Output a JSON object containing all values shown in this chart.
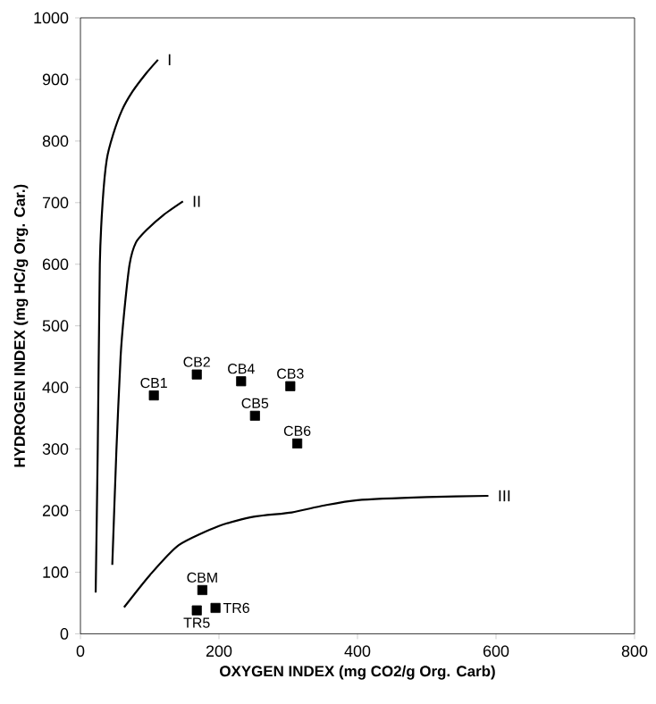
{
  "chart_data": {
    "type": "line",
    "xlabel": "OXYGEN INDEX (mg CO2/g Org. Carb)",
    "ylabel": "HYDROGEN INDEX (mg HC/g Org. Car.)",
    "xlim": [
      0,
      800
    ],
    "ylim": [
      0,
      1000
    ],
    "xticks": [
      0,
      200,
      400,
      600,
      800
    ],
    "yticks": [
      0,
      100,
      200,
      300,
      400,
      500,
      600,
      700,
      800,
      900,
      1000
    ],
    "line_style": "solid",
    "series": [
      {
        "name": "I",
        "color": "#000000",
        "x": [
          22,
          25,
          28,
          32,
          38,
          47,
          60,
          75,
          95,
          112
        ],
        "values": [
          67,
          300,
          600,
          700,
          770,
          810,
          850,
          880,
          910,
          932
        ]
      },
      {
        "name": "II",
        "color": "#000000",
        "x": [
          46,
          52,
          58,
          63,
          71,
          80,
          95,
          120,
          148
        ],
        "values": [
          112,
          300,
          450,
          520,
          600,
          635,
          655,
          680,
          702
        ]
      },
      {
        "name": "III",
        "color": "#000000",
        "x": [
          63,
          100,
          142,
          200,
          250,
          305,
          350,
          400,
          500,
          589
        ],
        "values": [
          43,
          95,
          144,
          175,
          190,
          197,
          208,
          217,
          222,
          224
        ]
      },
      {
        "type": "scatter",
        "marker": "square",
        "color": "#000000",
        "x": [
          106,
          168,
          232,
          303,
          252,
          313,
          176,
          168,
          195
        ],
        "values": [
          387,
          421,
          410,
          402,
          354,
          309,
          71,
          38,
          42
        ]
      }
    ],
    "annotations": [
      {
        "text": "CB1",
        "x": 106,
        "y": 387
      },
      {
        "text": "CB2",
        "x": 168,
        "y": 421
      },
      {
        "text": "CB4",
        "x": 232,
        "y": 410
      },
      {
        "text": "CB3",
        "x": 303,
        "y": 402
      },
      {
        "text": "CB5",
        "x": 252,
        "y": 354
      },
      {
        "text": "CB6",
        "x": 313,
        "y": 309
      },
      {
        "text": "CBM",
        "x": 176,
        "y": 71
      },
      {
        "text": "TR5",
        "x": 168,
        "y": 38
      },
      {
        "text": "TR6",
        "x": 195,
        "y": 42
      }
    ]
  }
}
